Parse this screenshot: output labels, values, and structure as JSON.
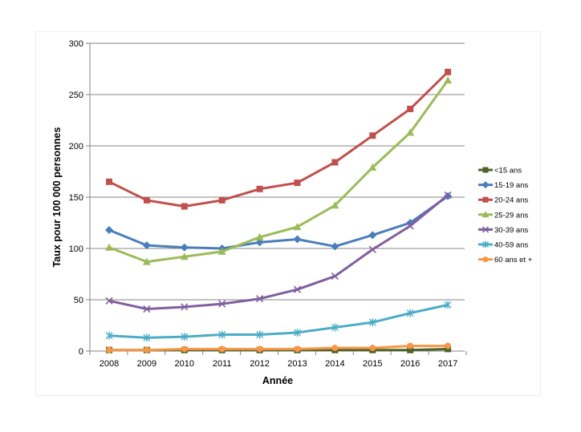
{
  "chart_data": {
    "type": "line",
    "title": "",
    "xlabel": "Année",
    "ylabel": "Taux pour 100 000 personnes",
    "ylim": [
      0,
      300
    ],
    "yticks": [
      "0",
      "50",
      "100",
      "150",
      "200",
      "250",
      "300"
    ],
    "x": [
      "2008",
      "2009",
      "2010",
      "2011",
      "2012",
      "2013",
      "2014",
      "2015",
      "2016",
      "2017"
    ],
    "series": [
      {
        "name": "<15 ans",
        "color": "#4f6228",
        "marker": "square",
        "values": [
          1,
          1,
          1,
          1,
          1,
          1,
          1,
          1,
          1,
          2
        ]
      },
      {
        "name": "15-19 ans",
        "color": "#4a7ebb",
        "marker": "diamond",
        "values": [
          118,
          103,
          101,
          100,
          106,
          109,
          102,
          113,
          125,
          151
        ]
      },
      {
        "name": "20-24 ans",
        "color": "#c0504d",
        "marker": "square",
        "values": [
          165,
          147,
          141,
          147,
          158,
          164,
          184,
          210,
          236,
          272
        ]
      },
      {
        "name": "25-29 ans",
        "color": "#9bbb59",
        "marker": "triangle",
        "values": [
          101,
          87,
          92,
          97,
          111,
          121,
          142,
          179,
          213,
          264
        ]
      },
      {
        "name": "30-39 ans",
        "color": "#7f5f9f",
        "marker": "x",
        "values": [
          49,
          41,
          43,
          46,
          51,
          60,
          73,
          99,
          122,
          152
        ]
      },
      {
        "name": "40-59 ans",
        "color": "#4bacc6",
        "marker": "star",
        "values": [
          15,
          13,
          14,
          16,
          16,
          18,
          23,
          28,
          37,
          45
        ]
      },
      {
        "name": "60 ans et +",
        "color": "#f79646",
        "marker": "circle",
        "values": [
          1,
          1,
          2,
          2,
          2,
          2,
          3,
          3,
          5,
          5
        ]
      }
    ],
    "grid": true,
    "legend_position": "right"
  }
}
